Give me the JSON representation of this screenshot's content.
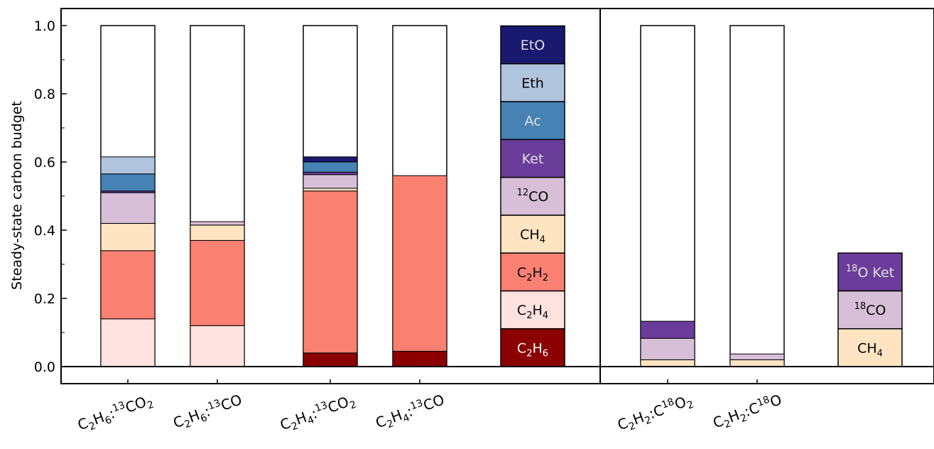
{
  "chart_data": {
    "type": "bar",
    "stacked": true,
    "ylabel": "Steady-state carbon budget",
    "ylim": [
      -0.05,
      1.05
    ],
    "yticks": [
      {
        "value": 0.0,
        "label": "0.0"
      },
      {
        "value": 0.2,
        "label": "0.2"
      },
      {
        "value": 0.4,
        "label": "0.4"
      },
      {
        "value": 0.6,
        "label": "0.6"
      },
      {
        "value": 0.8,
        "label": "0.8"
      },
      {
        "value": 1.0,
        "label": "1.0"
      }
    ],
    "colors": {
      "C2H6": "#8b0000",
      "C2H4": "#fde2df",
      "C2H2": "#fa8072",
      "CH4": "#ffe4c2",
      "12CO": "#d8bfd8",
      "Ket": "#6a3d9a",
      "Ac": "#4682b4",
      "Eth": "#b0c4de",
      "EtO": "#191970",
      "C18O": "#d8bfd8",
      "18OKet": "#6a3d9a",
      "total": "#ffffff"
    },
    "panels": [
      {
        "categories": [
          {
            "base": "C",
            "sub1": "2",
            "mid": "H",
            "sub2": "6",
            "sep": ":",
            "sup": "13",
            "tail": "CO",
            "tailsub": "2"
          },
          {
            "base": "C",
            "sub1": "2",
            "mid": "H",
            "sub2": "6",
            "sep": ":",
            "sup": "13",
            "tail": "CO",
            "tailsub": ""
          },
          {
            "base": "C",
            "sub1": "2",
            "mid": "H",
            "sub2": "4",
            "sep": ":",
            "sup": "13",
            "tail": "CO",
            "tailsub": "2"
          },
          {
            "base": "C",
            "sub1": "2",
            "mid": "H",
            "sub2": "4",
            "sep": ":",
            "sup": "13",
            "tail": "CO",
            "tailsub": ""
          }
        ],
        "bars": [
          {
            "total": 1.0,
            "segments": [
              {
                "key": "C2H4",
                "value": 0.14
              },
              {
                "key": "C2H2",
                "value": 0.2
              },
              {
                "key": "CH4",
                "value": 0.08
              },
              {
                "key": "12CO",
                "value": 0.09
              },
              {
                "key": "Ket",
                "value": 0.005
              },
              {
                "key": "Ac",
                "value": 0.05
              },
              {
                "key": "Eth",
                "value": 0.05
              }
            ]
          },
          {
            "total": 1.0,
            "segments": [
              {
                "key": "C2H4",
                "value": 0.12
              },
              {
                "key": "C2H2",
                "value": 0.25
              },
              {
                "key": "CH4",
                "value": 0.045
              },
              {
                "key": "12CO",
                "value": 0.01
              }
            ]
          },
          {
            "total": 1.0,
            "segments": [
              {
                "key": "C2H6",
                "value": 0.04
              },
              {
                "key": "C2H2",
                "value": 0.475
              },
              {
                "key": "CH4",
                "value": 0.008
              },
              {
                "key": "12CO",
                "value": 0.04
              },
              {
                "key": "Ket",
                "value": 0.007
              },
              {
                "key": "Ac",
                "value": 0.03
              },
              {
                "key": "EtO",
                "value": 0.015
              }
            ]
          },
          {
            "total": 1.0,
            "segments": [
              {
                "key": "C2H6",
                "value": 0.045
              },
              {
                "key": "C2H2",
                "value": 0.515
              }
            ]
          }
        ],
        "legend": [
          {
            "key": "C2H6",
            "text": "C",
            "sub1": "2",
            "mid": "H",
            "sub2": "6",
            "sup": "",
            "textColor": "#ffffff"
          },
          {
            "key": "C2H4",
            "text": "C",
            "sub1": "2",
            "mid": "H",
            "sub2": "4",
            "sup": "",
            "textColor": "#000000"
          },
          {
            "key": "C2H2",
            "text": "C",
            "sub1": "2",
            "mid": "H",
            "sub2": "2",
            "sup": "",
            "textColor": "#000000"
          },
          {
            "key": "CH4",
            "text": "CH",
            "sub1": "4",
            "mid": "",
            "sub2": "",
            "sup": "",
            "textColor": "#000000"
          },
          {
            "key": "12CO",
            "text": "CO",
            "sub1": "",
            "mid": "",
            "sub2": "",
            "sup": "12",
            "textColor": "#000000"
          },
          {
            "key": "Ket",
            "text": "Ket",
            "sub1": "",
            "mid": "",
            "sub2": "",
            "sup": "",
            "textColor": "#e0e0e0"
          },
          {
            "key": "Ac",
            "text": "Ac",
            "sub1": "",
            "mid": "",
            "sub2": "",
            "sup": "",
            "textColor": "#e0e0e0"
          },
          {
            "key": "Eth",
            "text": "Eth",
            "sub1": "",
            "mid": "",
            "sub2": "",
            "sup": "",
            "textColor": "#000000"
          },
          {
            "key": "EtO",
            "text": "EtO",
            "sub1": "",
            "mid": "",
            "sub2": "",
            "sup": "",
            "textColor": "#e0e0e0"
          }
        ]
      },
      {
        "categories": [
          {
            "base": "C",
            "sub1": "2",
            "mid": "H",
            "sub2": "2",
            "sep": ":C",
            "sup": "18",
            "tail": "O",
            "tailsub": "2"
          },
          {
            "base": "C",
            "sub1": "2",
            "mid": "H",
            "sub2": "2",
            "sep": ":C",
            "sup": "18",
            "tail": "O",
            "tailsub": ""
          }
        ],
        "bars": [
          {
            "total": 1.0,
            "segments": [
              {
                "key": "CH4",
                "value": 0.02
              },
              {
                "key": "C18O",
                "value": 0.063
              },
              {
                "key": "18OKet",
                "value": 0.05
              }
            ]
          },
          {
            "total": 1.0,
            "segments": [
              {
                "key": "CH4",
                "value": 0.02
              },
              {
                "key": "C18O",
                "value": 0.017
              }
            ]
          }
        ],
        "legend": [
          {
            "key": "CH4",
            "text": "CH",
            "sub1": "4",
            "mid": "",
            "sub2": "",
            "sup": "",
            "textColor": "#000000"
          },
          {
            "key": "C18O",
            "text": "C",
            "sub1": "",
            "mid": "",
            "sub2": "",
            "sup": "18",
            "tail": "O",
            "textColor": "#000000"
          },
          {
            "key": "18OKet",
            "text": "O Ket",
            "sub1": "",
            "mid": "",
            "sub2": "",
            "sup": "18",
            "textColor": "#e0e0e0"
          }
        ]
      }
    ]
  }
}
